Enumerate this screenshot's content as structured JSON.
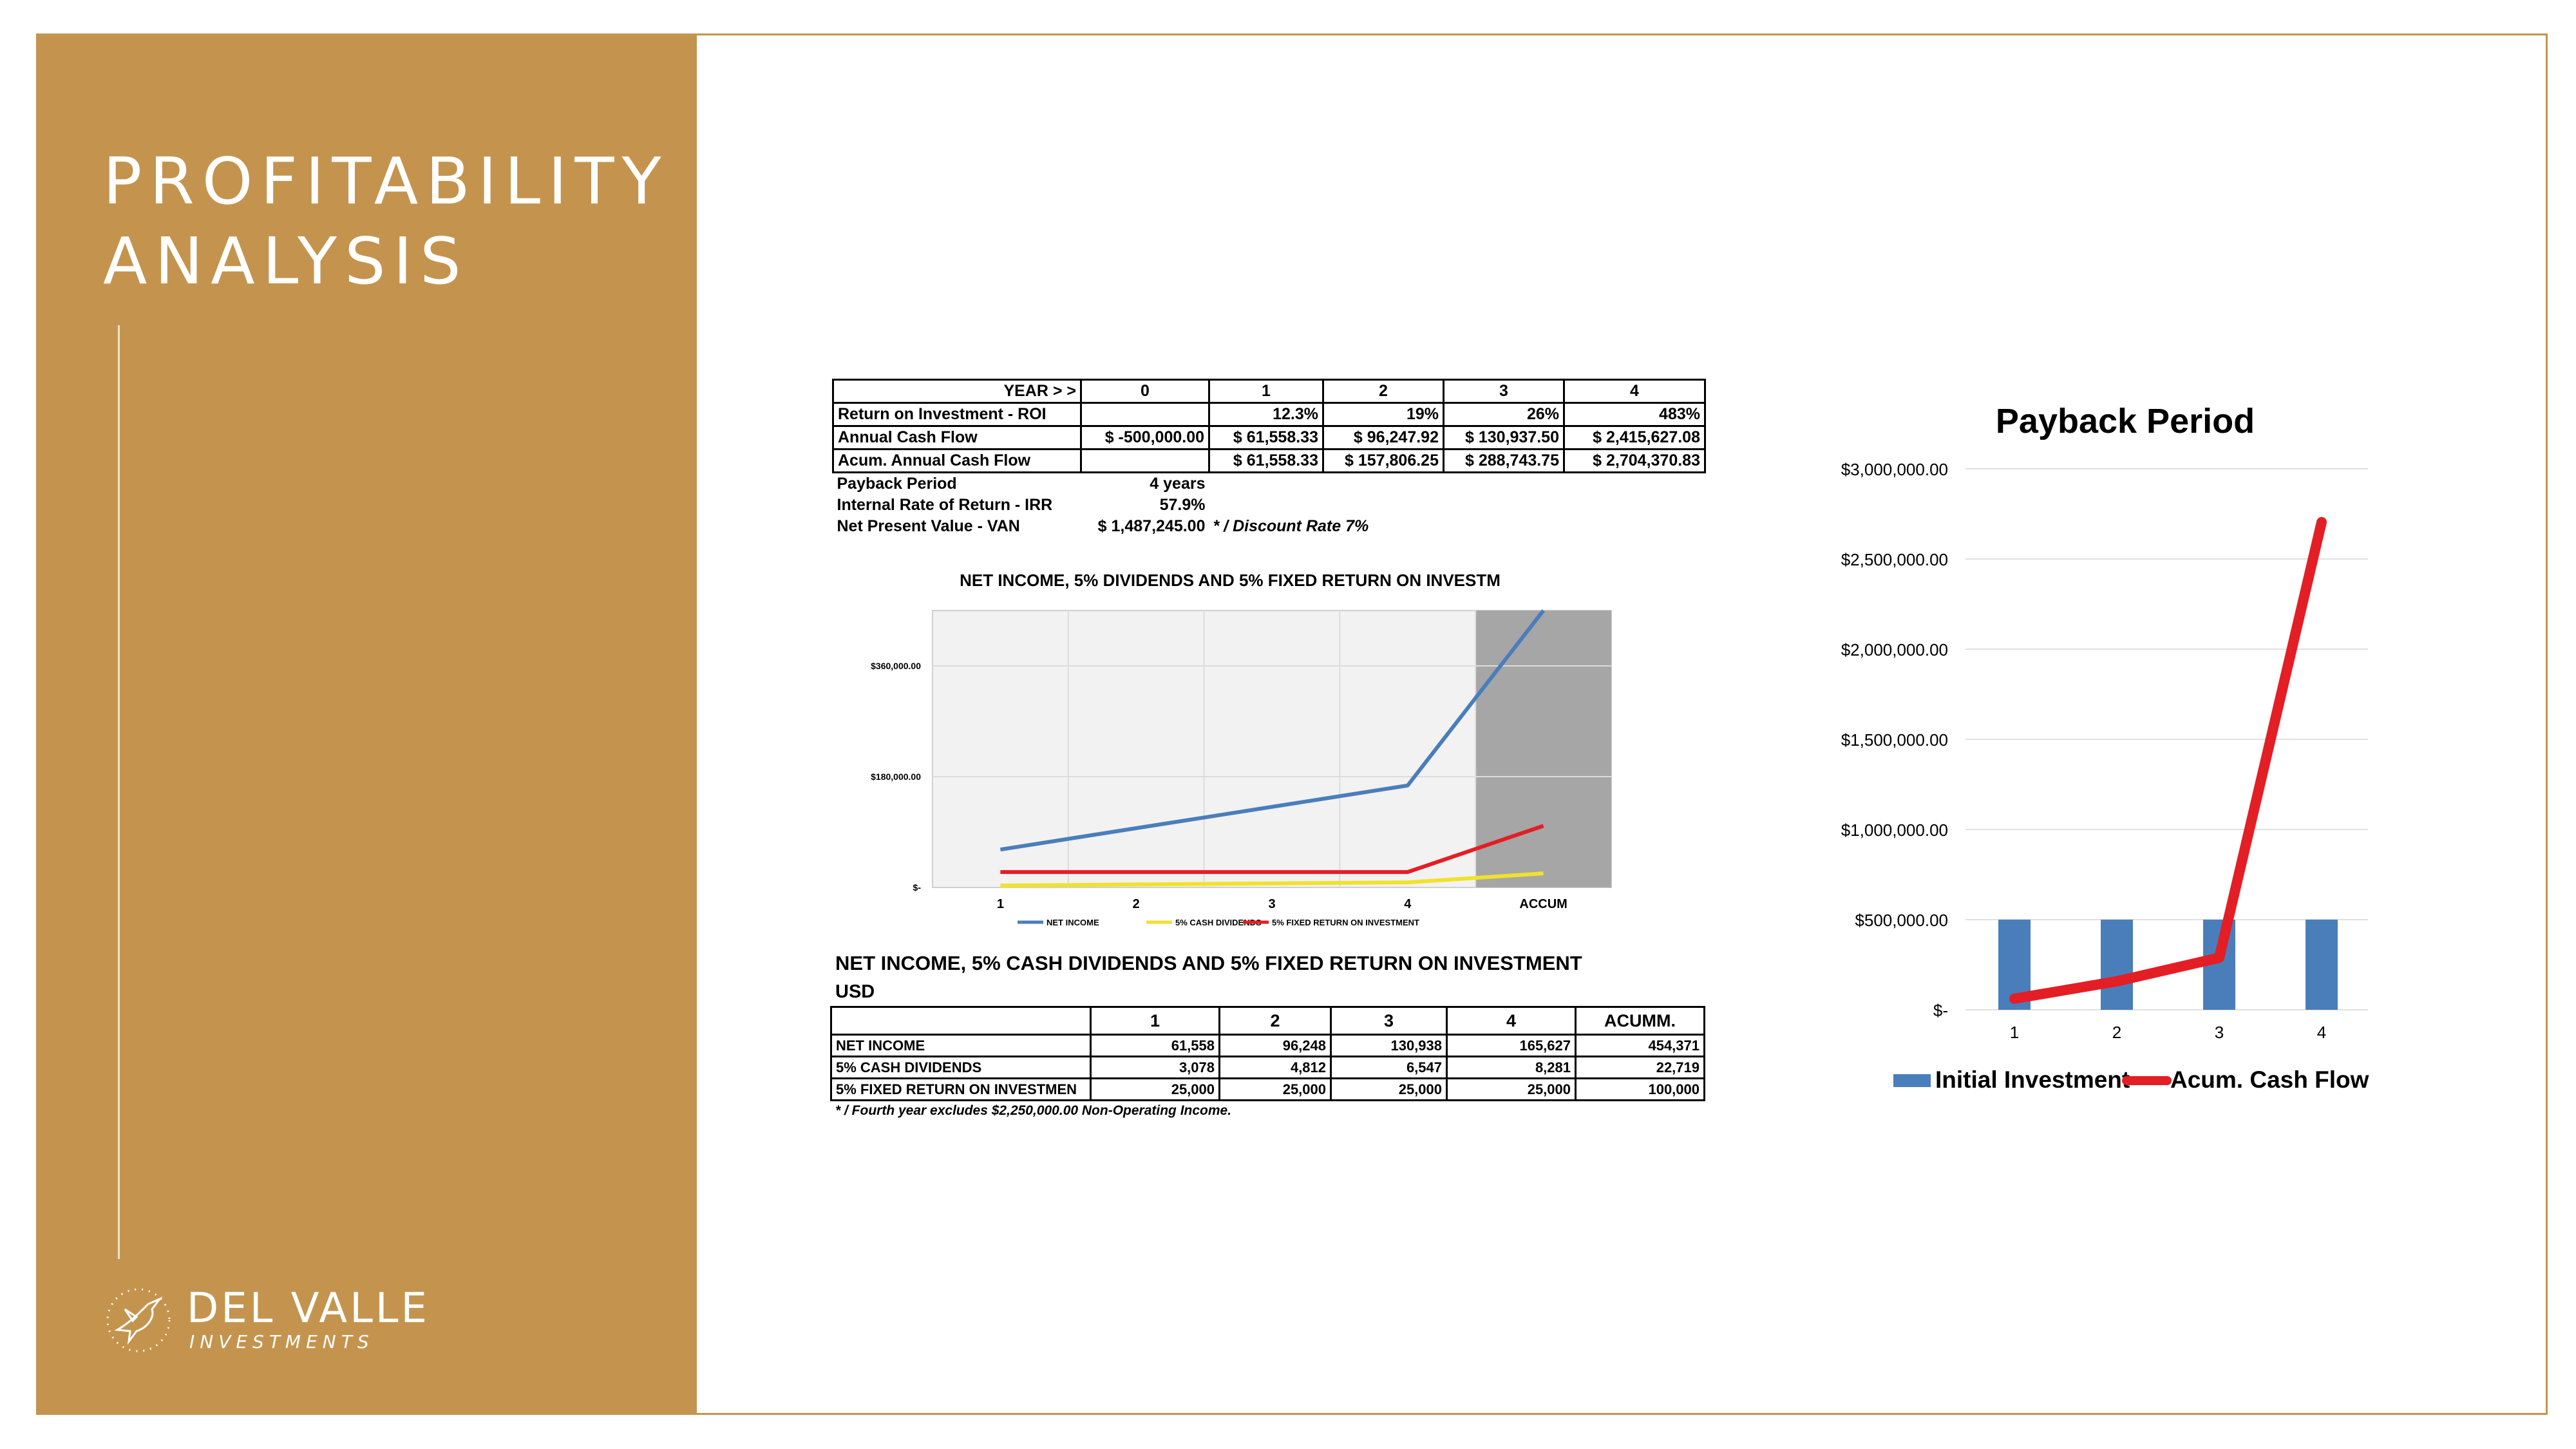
{
  "slide": {
    "title_line1": "PROFITABILITY",
    "title_line2": "ANALYSIS",
    "logo_name": "DEL VALLE",
    "logo_sub": "INVESTMENTS",
    "accent_color": "#c4944e"
  },
  "roi_table": {
    "header": [
      "YEAR > >",
      "0",
      "1",
      "2",
      "3",
      "4"
    ],
    "rows": [
      {
        "label": "Return on Investment - ROI",
        "cells": [
          "",
          "12.3%",
          "19%",
          "26%",
          "483%"
        ]
      },
      {
        "label": "Annual Cash Flow",
        "cells": [
          "$   -500,000.00",
          "$ 61,558.33",
          "$   96,247.92",
          "$ 130,937.50",
          "$  2,415,627.08"
        ]
      },
      {
        "label": "Acum. Annual Cash Flow",
        "cells": [
          "",
          "$ 61,558.33",
          "$ 157,806.25",
          "$ 288,743.75",
          "$  2,704,370.83"
        ]
      }
    ],
    "extra": [
      {
        "label": "Payback Period",
        "value": "4 years",
        "note": ""
      },
      {
        "label": "Internal Rate of Return - IRR",
        "value": "57.9%",
        "note": ""
      },
      {
        "label": "Net Present Value - VAN",
        "value": "$ 1,487,245.00",
        "note": "* / Discount Rate 7%"
      }
    ]
  },
  "income_table": {
    "caption": "NET INCOME, 5% CASH DIVIDENDS AND 5% FIXED RETURN ON INVESTMENT",
    "unit": "USD",
    "header": [
      "",
      "1",
      "2",
      "3",
      "4",
      "ACUMM."
    ],
    "rows": [
      {
        "label": "NET INCOME",
        "cells": [
          "61,558",
          "96,248",
          "130,938",
          "165,627",
          "454,371"
        ]
      },
      {
        "label": "5% CASH DIVIDENDS",
        "cells": [
          "3,078",
          "4,812",
          "6,547",
          "8,281",
          "22,719"
        ]
      },
      {
        "label": "5% FIXED RETURN ON INVESTMEN",
        "cells": [
          "25,000",
          "25,000",
          "25,000",
          "25,000",
          "100,000"
        ]
      }
    ],
    "footnote": "* / Fourth year excludes $2,250,000.00 Non-Operating Income."
  },
  "chart_data": [
    {
      "type": "line",
      "title": "NET INCOME, 5% DIVIDENDS AND 5% FIXED RETURN ON INVESTM",
      "categories": [
        "1",
        "2",
        "3",
        "4",
        "ACCUM"
      ],
      "ytick_labels": [
        "$360,000.00",
        "$180,000.00",
        "$-"
      ],
      "ylim": [
        0,
        450000
      ],
      "grid": true,
      "shaded_category": "ACCUM",
      "legend_position": "bottom",
      "series": [
        {
          "name": "NET INCOME",
          "color": "#4a7ebb",
          "values": [
            61558,
            96248,
            130938,
            165627,
            454371
          ]
        },
        {
          "name": "5% CASH DIVIDENDS",
          "color": "#f2e12b",
          "values": [
            3078,
            4812,
            6547,
            8281,
            22719
          ]
        },
        {
          "name": "5% FIXED RETURN ON INVESTMENT",
          "color": "#e41e25",
          "values": [
            25000,
            25000,
            25000,
            25000,
            100000
          ]
        }
      ]
    },
    {
      "type": "bar",
      "title": "Payback Period",
      "categories": [
        "1",
        "2",
        "3",
        "4"
      ],
      "ytick_labels": [
        "$3,000,000.00",
        "$2,500,000.00",
        "$2,000,000.00",
        "$1,500,000.00",
        "$1,000,000.00",
        "$500,000.00",
        "$-"
      ],
      "ylim": [
        0,
        3000000
      ],
      "grid": true,
      "legend_position": "bottom",
      "series": [
        {
          "name": "Initial Investment",
          "type": "bar",
          "color": "#4a7ebb",
          "values": [
            500000,
            500000,
            500000,
            500000
          ]
        },
        {
          "name": "Acum. Cash Flow",
          "type": "line",
          "color": "#e41e25",
          "values": [
            61558.33,
            157806.25,
            288743.75,
            2704370.83
          ]
        }
      ]
    }
  ]
}
